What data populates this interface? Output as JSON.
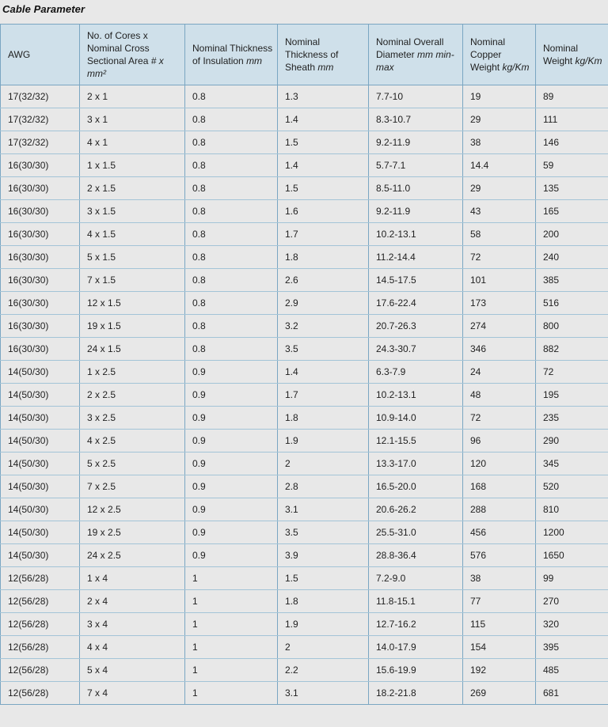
{
  "title": "Cable Parameter",
  "colors": {
    "page_bg": "#e8e8e8",
    "header_bg": "#cfe0ea",
    "row_bg": "#e8e8e8",
    "border_strong": "#7aa6c2",
    "border_light": "#a3c4d7",
    "text": "#1f1f1f"
  },
  "table": {
    "columns": [
      {
        "id": "awg",
        "label": "AWG",
        "unit": ""
      },
      {
        "id": "cores-cross-section",
        "label": "No. of Cores x Nominal Cross Sectional Area",
        "unit": "# x mm²"
      },
      {
        "id": "insulation-thickness",
        "label": "Nominal Thickness of Insulation",
        "unit": "mm"
      },
      {
        "id": "sheath-thickness",
        "label": "Nominal Thickness of Sheath",
        "unit": "mm"
      },
      {
        "id": "overall-diameter",
        "label": "Nominal Overall Diameter",
        "unit": "mm min-max"
      },
      {
        "id": "copper-weight",
        "label": "Nominal Copper Weight",
        "unit": "kg/Km"
      },
      {
        "id": "nominal-weight",
        "label": "Nominal Weight",
        "unit": "kg/Km"
      }
    ],
    "rows": [
      [
        "17(32/32)",
        "2 x 1",
        "0.8",
        "1.3",
        "7.7-10",
        "19",
        "89"
      ],
      [
        "17(32/32)",
        "3 x 1",
        "0.8",
        "1.4",
        "8.3-10.7",
        "29",
        "111"
      ],
      [
        "17(32/32)",
        "4 x 1",
        "0.8",
        "1.5",
        "9.2-11.9",
        "38",
        "146"
      ],
      [
        "16(30/30)",
        "1 x 1.5",
        "0.8",
        "1.4",
        "5.7-7.1",
        "14.4",
        "59"
      ],
      [
        "16(30/30)",
        "2 x 1.5",
        "0.8",
        "1.5",
        "8.5-11.0",
        "29",
        "135"
      ],
      [
        "16(30/30)",
        "3 x 1.5",
        "0.8",
        "1.6",
        "9.2-11.9",
        "43",
        "165"
      ],
      [
        "16(30/30)",
        "4 x 1.5",
        "0.8",
        "1.7",
        "10.2-13.1",
        "58",
        "200"
      ],
      [
        "16(30/30)",
        "5 x 1.5",
        "0.8",
        "1.8",
        "11.2-14.4",
        "72",
        "240"
      ],
      [
        "16(30/30)",
        "7 x 1.5",
        "0.8",
        "2.6",
        "14.5-17.5",
        "101",
        "385"
      ],
      [
        "16(30/30)",
        "12 x 1.5",
        "0.8",
        "2.9",
        "17.6-22.4",
        "173",
        "516"
      ],
      [
        "16(30/30)",
        "19 x 1.5",
        "0.8",
        "3.2",
        "20.7-26.3",
        "274",
        "800"
      ],
      [
        "16(30/30)",
        "24 x 1.5",
        "0.8",
        "3.5",
        "24.3-30.7",
        "346",
        "882"
      ],
      [
        "14(50/30)",
        "1 x 2.5",
        "0.9",
        "1.4",
        "6.3-7.9",
        "24",
        "72"
      ],
      [
        "14(50/30)",
        "2 x 2.5",
        "0.9",
        "1.7",
        "10.2-13.1",
        "48",
        "195"
      ],
      [
        "14(50/30)",
        "3 x 2.5",
        "0.9",
        "1.8",
        "10.9-14.0",
        "72",
        "235"
      ],
      [
        "14(50/30)",
        "4 x 2.5",
        "0.9",
        "1.9",
        "12.1-15.5",
        "96",
        "290"
      ],
      [
        "14(50/30)",
        "5 x 2.5",
        "0.9",
        "2",
        "13.3-17.0",
        "120",
        "345"
      ],
      [
        "14(50/30)",
        "7 x 2.5",
        "0.9",
        "2.8",
        "16.5-20.0",
        "168",
        "520"
      ],
      [
        "14(50/30)",
        "12 x 2.5",
        "0.9",
        "3.1",
        "20.6-26.2",
        "288",
        "810"
      ],
      [
        "14(50/30)",
        "19 x 2.5",
        "0.9",
        "3.5",
        "25.5-31.0",
        "456",
        "1200"
      ],
      [
        "14(50/30)",
        "24 x 2.5",
        "0.9",
        "3.9",
        "28.8-36.4",
        "576",
        "1650"
      ],
      [
        "12(56/28)",
        "1 x 4",
        "1",
        "1.5",
        "7.2-9.0",
        "38",
        "99"
      ],
      [
        "12(56/28)",
        "2 x 4",
        "1",
        "1.8",
        "11.8-15.1",
        "77",
        "270"
      ],
      [
        "12(56/28)",
        "3 x 4",
        "1",
        "1.9",
        "12.7-16.2",
        "115",
        "320"
      ],
      [
        "12(56/28)",
        "4 x 4",
        "1",
        "2",
        "14.0-17.9",
        "154",
        "395"
      ],
      [
        "12(56/28)",
        "5 x 4",
        "1",
        "2.2",
        "15.6-19.9",
        "192",
        "485"
      ],
      [
        "12(56/28)",
        "7 x 4",
        "1",
        "3.1",
        "18.2-21.8",
        "269",
        "681"
      ]
    ]
  }
}
